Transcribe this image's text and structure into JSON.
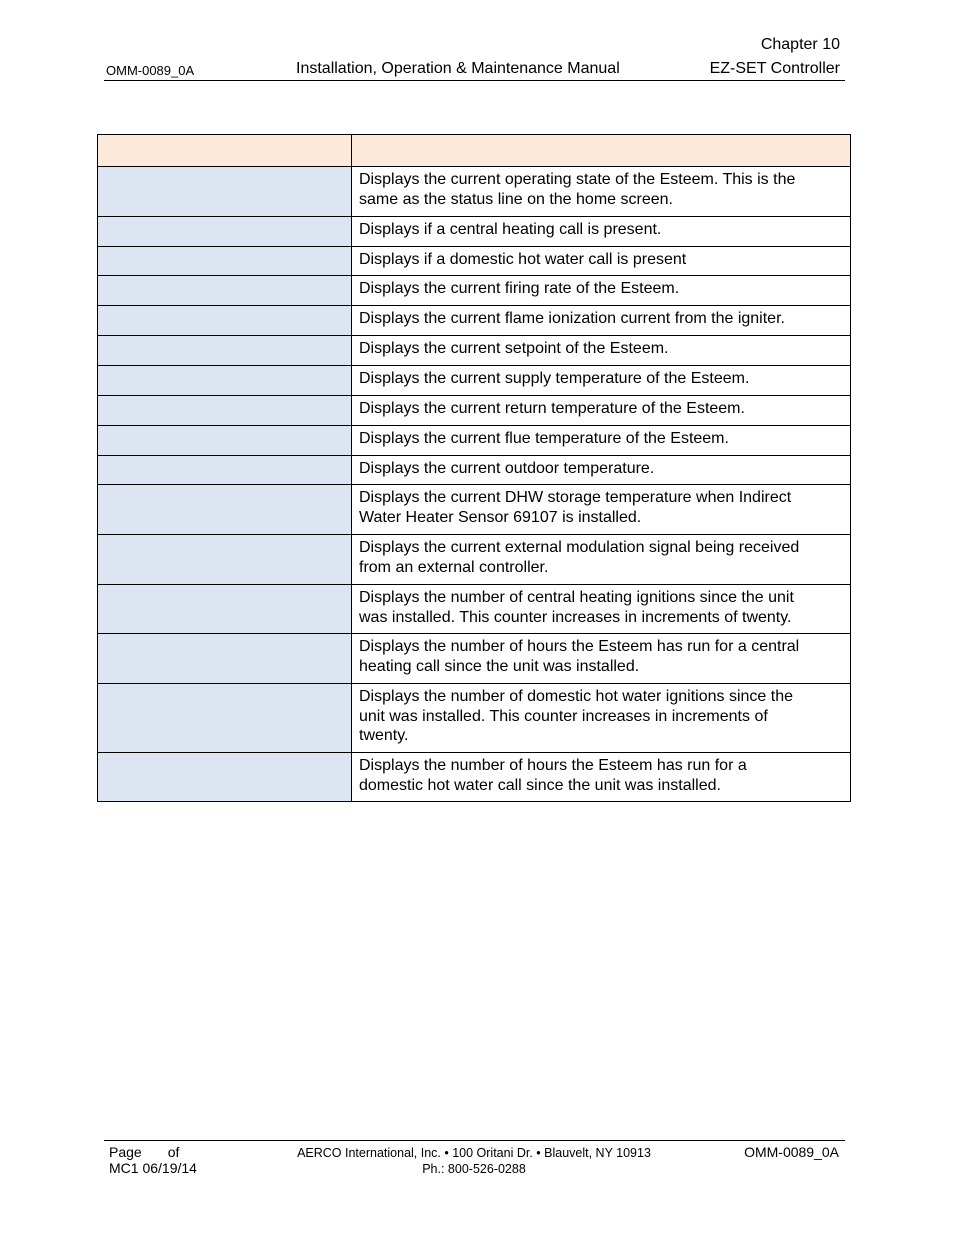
{
  "header": {
    "chapter": "Chapter 10",
    "doc_code": "OMM-0089_0A",
    "title": "Installation, Operation & Maintenance Manual",
    "subtitle": "EZ-SET Controller"
  },
  "colors": {
    "table_header_bg": "#FCE9DA",
    "table_left_bg": "#DCE6F2"
  },
  "table": {
    "headers": [
      "",
      ""
    ],
    "rows": [
      {
        "label": "",
        "desc": "Displays the current operating state of the Esteem.  This is the\nsame as the status line on the home screen."
      },
      {
        "label": "",
        "desc": "Displays if a central heating call is present."
      },
      {
        "label": "",
        "desc": "Displays if a domestic hot water call is present"
      },
      {
        "label": "",
        "desc": "Displays the current firing rate of the Esteem."
      },
      {
        "label": "",
        "desc": "Displays the current flame ionization current from the igniter."
      },
      {
        "label": "",
        "desc": "Displays the current setpoint of the Esteem."
      },
      {
        "label": "",
        "desc": "Displays the current supply temperature of the Esteem."
      },
      {
        "label": "",
        "desc": "Displays the current return temperature of the Esteem."
      },
      {
        "label": "",
        "desc": "Displays the current flue temperature of the Esteem."
      },
      {
        "label": "",
        "desc": "Displays the current outdoor temperature."
      },
      {
        "label": "",
        "desc": "Displays the current DHW storage temperature when Indirect\nWater Heater Sensor 69107 is installed."
      },
      {
        "label": "",
        "desc": "Displays the current external modulation signal being received\nfrom an external controller."
      },
      {
        "label": "",
        "desc": "Displays the number of central heating ignitions since the unit\nwas installed.  This counter increases in increments of twenty."
      },
      {
        "label": "",
        "desc": "Displays the number of hours the Esteem has run for a central\nheating call since the unit was installed."
      },
      {
        "label": "",
        "desc": "Displays the number of domestic hot water ignitions since the\nunit was installed.  This counter increases in increments of\ntwenty."
      },
      {
        "label": "",
        "desc": "Displays the number of hours the Esteem has run for a\ndomestic hot water call since the unit was installed."
      }
    ]
  },
  "footer": {
    "page_label": "Page",
    "of_label": "of",
    "revision": "MC1 06/19/14",
    "address": "AERCO International, Inc. • 100 Oritani Dr. •  Blauvelt, NY 10913",
    "phone": "Ph.: 800-526-0288",
    "doc_code": "OMM-0089_0A"
  }
}
